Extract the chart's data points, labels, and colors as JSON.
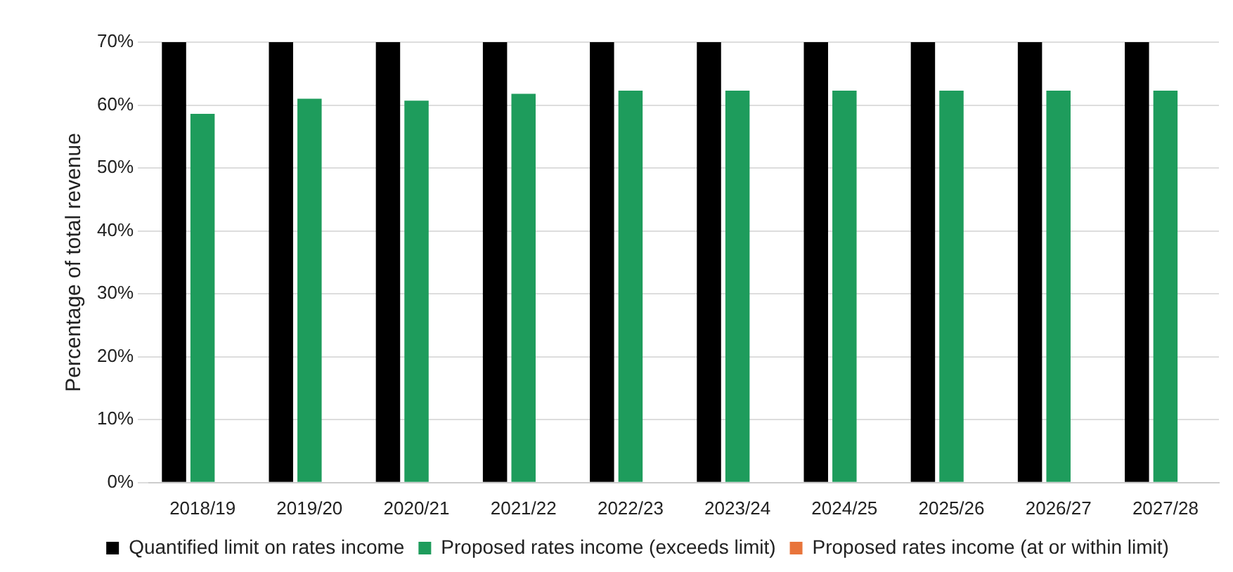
{
  "chart_data": {
    "type": "bar",
    "ylabel": "Percentage of total revenue",
    "categories": [
      "2018/19",
      "2019/20",
      "2020/21",
      "2021/22",
      "2022/23",
      "2023/24",
      "2024/25",
      "2025/26",
      "2026/27",
      "2027/28"
    ],
    "series": [
      {
        "name": "Quantified limit on rates income",
        "color": "#000000",
        "values": [
          70,
          70,
          70,
          70,
          70,
          70,
          70,
          70,
          70,
          70
        ]
      },
      {
        "name": "Proposed rates income (exceeds limit)",
        "color": "#1e9c5c",
        "values": [
          58.6,
          61.0,
          60.7,
          61.8,
          62.3,
          62.3,
          62.3,
          62.3,
          62.3,
          62.3
        ]
      },
      {
        "name": "Proposed rates income (at or within limit)",
        "color": "#e8743b",
        "values": [
          null,
          null,
          null,
          null,
          null,
          null,
          null,
          null,
          null,
          null
        ]
      }
    ],
    "ylim": [
      0,
      70
    ],
    "yticks": [
      {
        "value": 0,
        "label": "0%"
      },
      {
        "value": 10,
        "label": "10%"
      },
      {
        "value": 20,
        "label": "20%"
      },
      {
        "value": 30,
        "label": "30%"
      },
      {
        "value": 40,
        "label": "40%"
      },
      {
        "value": 50,
        "label": "50%"
      },
      {
        "value": 60,
        "label": "60%"
      },
      {
        "value": 70,
        "label": "70%"
      }
    ],
    "grid": "y",
    "legend": "bottom"
  }
}
